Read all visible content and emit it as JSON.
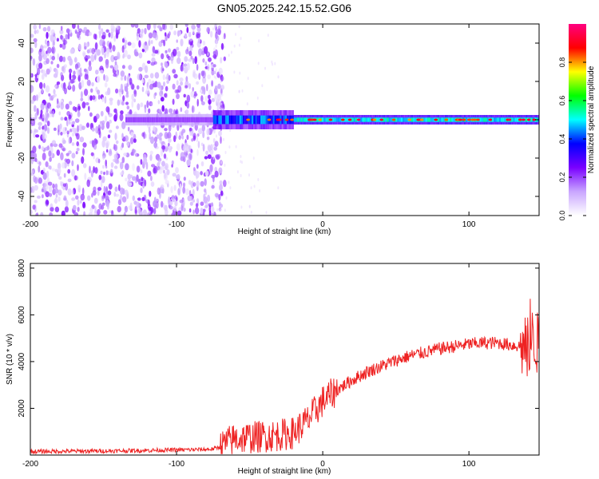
{
  "title": "GN05.2025.242.15.52.G06",
  "chart_data": [
    {
      "type": "heatmap",
      "name": "spectrogram",
      "xlabel": "Height of straight line (km)",
      "ylabel": "Frequency (Hz)",
      "xlim": [
        -200,
        148
      ],
      "ylim": [
        -50,
        50
      ],
      "xticks": [
        -200,
        -100,
        0,
        100
      ],
      "yticks": [
        -40,
        -20,
        0,
        20,
        40
      ],
      "colorbar": {
        "label": "Normalized spectral amplitude",
        "range": [
          0,
          1
        ],
        "ticks": [
          "0.0",
          "0.2",
          "0.4",
          "0.6",
          "0.8"
        ],
        "tick_values": [
          0.0,
          0.2,
          0.4,
          0.6,
          0.8
        ],
        "colors": [
          "#ffffff",
          "#c9a6ff",
          "#7a00ff",
          "#0000ff",
          "#00ffff",
          "#00ff00",
          "#ffff00",
          "#ff0000",
          "#ff0080"
        ]
      },
      "regions": [
        {
          "x": [
            -200,
            -75
          ],
          "f": [
            -50,
            50
          ],
          "desc": "broadband noise",
          "level": 0.12
        },
        {
          "x": [
            -75,
            -20
          ],
          "f": [
            -5,
            5
          ],
          "desc": "emerging signal",
          "level": 0.35
        },
        {
          "x": [
            -20,
            148
          ],
          "f": [
            -2,
            2
          ],
          "desc": "strong tone at 0 Hz",
          "level": 0.6
        }
      ],
      "grid": false
    },
    {
      "type": "line",
      "name": "snr",
      "xlabel": "Height of straight line (km)",
      "ylabel": "SNR (10 * v/v)",
      "xlim": [
        -200,
        148
      ],
      "ylim": [
        0,
        8200
      ],
      "xticks": [
        -200,
        -100,
        0,
        100
      ],
      "yticks": [
        2000,
        4000,
        6000,
        8000
      ],
      "color": "#ee2222",
      "series": [
        {
          "x": [
            -200,
            -180,
            -160,
            -140,
            -120,
            -100,
            -90,
            -80,
            -75,
            -70,
            -65,
            -60,
            -50,
            -40,
            -30,
            -20,
            -10,
            0,
            10,
            20,
            30,
            40,
            50,
            60,
            70,
            80,
            90,
            100,
            110,
            120,
            130,
            135,
            140,
            143,
            145,
            148
          ],
          "y": [
            150,
            160,
            170,
            180,
            200,
            220,
            230,
            240,
            260,
            350,
            550,
            700,
            750,
            800,
            850,
            950,
            1500,
            2300,
            2800,
            3200,
            3550,
            3800,
            4050,
            4250,
            4400,
            4550,
            4650,
            4750,
            4800,
            4800,
            4700,
            4650,
            4500,
            4900,
            5000,
            4600
          ]
        }
      ],
      "grid": false
    }
  ]
}
